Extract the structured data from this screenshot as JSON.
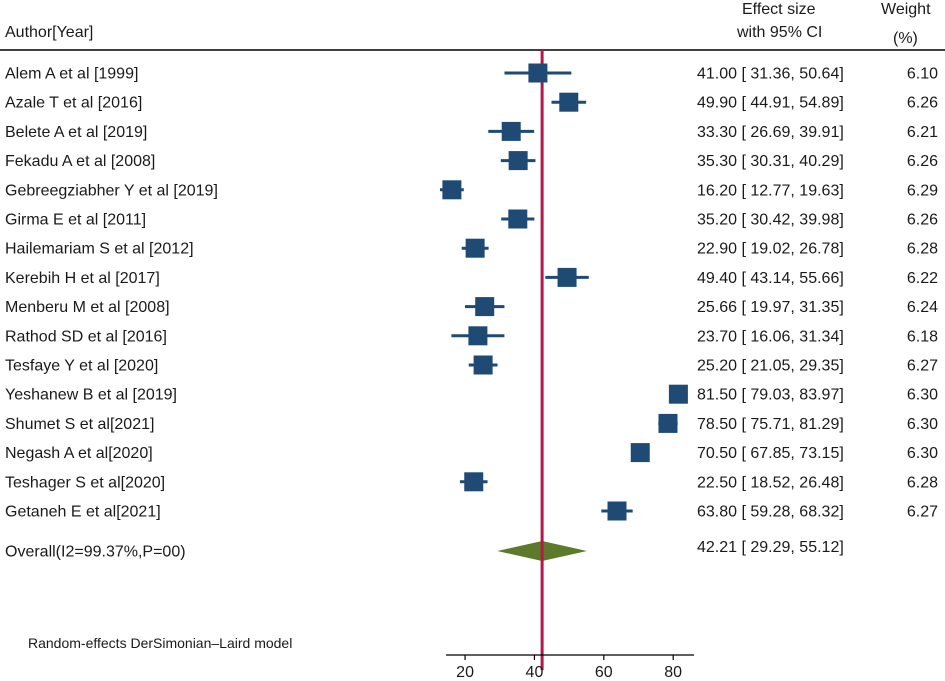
{
  "header": {
    "author_col": "Author[Year]",
    "effect_line1": "Effect size",
    "effect_line2": "with 95% CI",
    "weight_line1": "Weight",
    "weight_line2": "(%)"
  },
  "chart_data": {
    "type": "forest",
    "studies": [
      {
        "author": "Alem A et al [1999]",
        "es": 41.0,
        "lo": 31.36,
        "hi": 50.64,
        "ci_text": "41.00 [ 31.36,  50.64]",
        "weight": "6.10"
      },
      {
        "author": "Azale T et al [2016]",
        "es": 49.9,
        "lo": 44.91,
        "hi": 54.89,
        "ci_text": "49.90 [ 44.91,  54.89]",
        "weight": "6.26"
      },
      {
        "author": "Belete A et al [2019]",
        "es": 33.3,
        "lo": 26.69,
        "hi": 39.91,
        "ci_text": "33.30 [ 26.69,  39.91]",
        "weight": "6.21"
      },
      {
        "author": "Fekadu A et al [2008]",
        "es": 35.3,
        "lo": 30.31,
        "hi": 40.29,
        "ci_text": "35.30 [ 30.31,  40.29]",
        "weight": "6.26"
      },
      {
        "author": "Gebreegziabher Y et al [2019]",
        "es": 16.2,
        "lo": 12.77,
        "hi": 19.63,
        "ci_text": "16.20 [ 12.77,  19.63]",
        "weight": "6.29"
      },
      {
        "author": "Girma E et al [2011]",
        "es": 35.2,
        "lo": 30.42,
        "hi": 39.98,
        "ci_text": "35.20 [ 30.42,  39.98]",
        "weight": "6.26"
      },
      {
        "author": "Hailemariam S et al [2012]",
        "es": 22.9,
        "lo": 19.02,
        "hi": 26.78,
        "ci_text": "22.90 [ 19.02,  26.78]",
        "weight": "6.28"
      },
      {
        "author": "Kerebih H et al [2017]",
        "es": 49.4,
        "lo": 43.14,
        "hi": 55.66,
        "ci_text": "49.40 [ 43.14,  55.66]",
        "weight": "6.22"
      },
      {
        "author": "Menberu M et al [2008]",
        "es": 25.66,
        "lo": 19.97,
        "hi": 31.35,
        "ci_text": "25.66 [ 19.97,  31.35]",
        "weight": "6.24"
      },
      {
        "author": "Rathod SD et al [2016]",
        "es": 23.7,
        "lo": 16.06,
        "hi": 31.34,
        "ci_text": "23.70 [ 16.06,  31.34]",
        "weight": "6.18"
      },
      {
        "author": "Tesfaye Y et al [2020]",
        "es": 25.2,
        "lo": 21.05,
        "hi": 29.35,
        "ci_text": "25.20 [ 21.05,  29.35]",
        "weight": "6.27"
      },
      {
        "author": "Yeshanew B et al [2019]",
        "es": 81.5,
        "lo": 79.03,
        "hi": 83.97,
        "ci_text": "81.50 [ 79.03,  83.97]",
        "weight": "6.30"
      },
      {
        "author": "Shumet S et al[2021]",
        "es": 78.5,
        "lo": 75.71,
        "hi": 81.29,
        "ci_text": "78.50 [ 75.71,  81.29]",
        "weight": "6.30"
      },
      {
        "author": "Negash A et al[2020]",
        "es": 70.5,
        "lo": 67.85,
        "hi": 73.15,
        "ci_text": "70.50 [ 67.85,  73.15]",
        "weight": "6.30"
      },
      {
        "author": "Teshager S et al[2020]",
        "es": 22.5,
        "lo": 18.52,
        "hi": 26.48,
        "ci_text": "22.50 [ 18.52,  26.48]",
        "weight": "6.28"
      },
      {
        "author": "Getaneh E et al[2021]",
        "es": 63.8,
        "lo": 59.28,
        "hi": 68.32,
        "ci_text": "63.80 [ 59.28,  68.32]",
        "weight": "6.27"
      }
    ],
    "overall": {
      "label": "Overall(I2=99.37%,P=00)",
      "es": 42.21,
      "lo": 29.29,
      "hi": 55.12,
      "ci_text": "42.21 [ 29.29,  55.12]"
    },
    "xticks": [
      20,
      40,
      60,
      80
    ],
    "xlim": [
      14.5,
      86
    ],
    "footnote": "Random-effects DerSimonian–Laird model",
    "colors": {
      "marker": "#1f4a73",
      "diamond": "#5b7a2a",
      "refline": "#b5174c"
    }
  }
}
